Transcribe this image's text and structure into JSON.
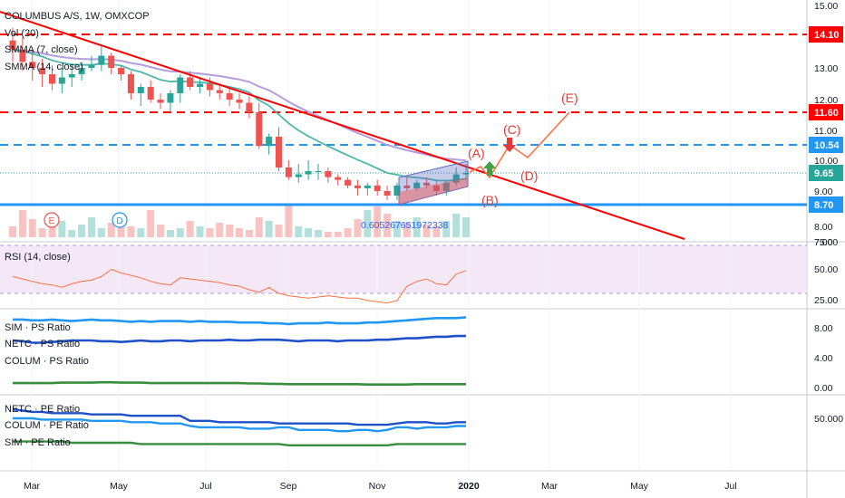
{
  "header": {
    "symbol": "COLUMBUS A/S, 1W, OMXCOP",
    "indicators": [
      "Vol (20)",
      "SMMA (7, close)",
      "SMMA (14, close)"
    ]
  },
  "colors": {
    "up": "#26a69a",
    "down": "#ef5350",
    "smma7": "#4db6ac",
    "smma14": "#b39ddb",
    "trend": "#ff0000",
    "level_red": "#ff0000",
    "level_blue": "#2196f3",
    "support": "#2196f3",
    "rsi": "#ff7043",
    "rsi_band": "#f3e5f5",
    "path": "#ff7043",
    "channel": "#5c6bc0"
  },
  "chart_data": [
    {
      "type": "candlestick",
      "title": "COLUMBUS A/S, 1W, OMXCOP",
      "x": [
        "2019-02-15",
        "2019-02-22",
        "2019-03-01",
        "2019-03-08",
        "2019-03-15",
        "2019-03-22",
        "2019-03-29",
        "2019-04-05",
        "2019-04-12",
        "2019-04-19",
        "2019-04-26",
        "2019-05-03",
        "2019-05-10",
        "2019-05-17",
        "2019-05-24",
        "2019-05-31",
        "2019-06-07",
        "2019-06-14",
        "2019-06-21",
        "2019-06-28",
        "2019-07-05",
        "2019-07-12",
        "2019-07-19",
        "2019-07-26",
        "2019-08-02",
        "2019-08-09",
        "2019-08-16",
        "2019-08-23",
        "2019-08-30",
        "2019-09-06",
        "2019-09-13",
        "2019-09-20",
        "2019-09-27",
        "2019-10-04",
        "2019-10-11",
        "2019-10-18",
        "2019-10-25",
        "2019-11-01",
        "2019-11-08",
        "2019-11-15",
        "2019-11-22",
        "2019-11-29",
        "2019-12-06",
        "2019-12-13",
        "2019-12-20",
        "2019-12-27",
        "2020-01-03"
      ],
      "open": [
        13.9,
        13.6,
        13.2,
        13.0,
        12.8,
        12.5,
        12.7,
        12.8,
        13.0,
        13.1,
        13.4,
        13.0,
        12.8,
        12.2,
        12.4,
        12.0,
        11.9,
        12.2,
        12.7,
        12.4,
        12.5,
        12.3,
        12.2,
        12.0,
        11.9,
        11.6,
        10.5,
        10.8,
        9.8,
        9.5,
        9.6,
        9.7,
        9.7,
        9.5,
        9.4,
        9.2,
        9.1,
        9.2,
        9.0,
        8.9,
        9.2,
        9.1,
        9.3,
        9.2,
        9.0,
        9.3,
        9.6
      ],
      "high": [
        14.3,
        14.0,
        13.6,
        13.3,
        13.1,
        13.0,
        13.1,
        13.2,
        13.4,
        13.7,
        13.5,
        13.1,
        12.9,
        12.5,
        12.6,
        12.2,
        12.3,
        12.8,
        12.9,
        12.7,
        12.7,
        12.5,
        12.4,
        12.2,
        12.1,
        11.9,
        10.9,
        11.1,
        10.0,
        9.9,
        10.0,
        9.9,
        9.8,
        9.6,
        9.5,
        9.4,
        9.3,
        9.4,
        9.2,
        9.3,
        9.5,
        9.4,
        9.5,
        9.4,
        9.4,
        9.8,
        9.9
      ],
      "low": [
        13.2,
        12.9,
        12.6,
        12.4,
        12.3,
        12.2,
        12.4,
        12.6,
        12.9,
        12.9,
        12.8,
        12.6,
        12.0,
        11.8,
        11.9,
        11.7,
        11.6,
        11.9,
        12.3,
        12.2,
        12.1,
        12.0,
        11.8,
        11.7,
        11.4,
        10.4,
        10.2,
        9.7,
        9.4,
        9.3,
        9.4,
        9.4,
        9.3,
        9.2,
        9.1,
        8.9,
        8.9,
        8.9,
        8.8,
        8.8,
        9.0,
        9.0,
        9.1,
        8.9,
        8.9,
        9.2,
        9.4
      ],
      "close": [
        13.6,
        13.2,
        13.0,
        12.8,
        12.5,
        12.7,
        12.8,
        13.0,
        13.1,
        13.4,
        13.0,
        12.8,
        12.2,
        12.4,
        12.0,
        11.9,
        12.2,
        12.7,
        12.4,
        12.5,
        12.3,
        12.2,
        12.0,
        11.9,
        11.6,
        10.5,
        10.8,
        9.8,
        9.5,
        9.6,
        9.7,
        9.7,
        9.5,
        9.4,
        9.2,
        9.1,
        9.2,
        9.0,
        8.9,
        9.2,
        9.1,
        9.3,
        9.2,
        9.0,
        9.3,
        9.6,
        9.65
      ],
      "volume_markers": [
        "E",
        "D"
      ],
      "volume_annotation": "0.605267651972338",
      "levels": [
        {
          "value": 14.1,
          "label": "14.10",
          "color": "red",
          "style": "dashed"
        },
        {
          "value": 11.6,
          "label": "11.60",
          "color": "red",
          "style": "dashed"
        },
        {
          "value": 10.54,
          "label": "10.54",
          "color": "blue",
          "style": "dashed"
        },
        {
          "value": 9.65,
          "label": "9.65",
          "color": "teal",
          "style": "dotted"
        },
        {
          "value": 8.7,
          "label": "8.70",
          "color": "blue",
          "style": "solid"
        }
      ],
      "wave_labels": [
        "(A)",
        "(B)",
        "(C)",
        "(D)",
        "(E)"
      ],
      "y_ticks": [
        "15.00",
        "13.00",
        "12.00",
        "11.00",
        "10.00",
        "9.00",
        "8.00",
        "7.00"
      ],
      "ylim": [
        7.0,
        15.0
      ]
    },
    {
      "type": "line",
      "title": "RSI (14, close)",
      "y_ticks": [
        "75.00",
        "50.00",
        "25.00"
      ],
      "ylim": [
        15,
        80
      ],
      "band": [
        30,
        70
      ],
      "series": [
        {
          "values": [
            44,
            42,
            40,
            38,
            37,
            35,
            38,
            40,
            41,
            44,
            50,
            47,
            45,
            43,
            40,
            38,
            37,
            43,
            42,
            41,
            40,
            39,
            37,
            36,
            33,
            31,
            35,
            30,
            28,
            27,
            26,
            27,
            28,
            27,
            26,
            26,
            24,
            23,
            22,
            24,
            36,
            40,
            42,
            38,
            37,
            46,
            49
          ]
        }
      ]
    },
    {
      "type": "line",
      "title": "PS Ratio",
      "y_ticks": [
        "8.00",
        "4.00",
        "0.00"
      ],
      "ylim": [
        -0.5,
        10
      ],
      "series": [
        {
          "name": "SIM · PS Ratio",
          "values": [
            9.1,
            9.1,
            9.0,
            9.0,
            9.1,
            9.0,
            8.9,
            9.0,
            9.1,
            9.0,
            9.0,
            8.9,
            8.8,
            8.9,
            8.8,
            8.9,
            8.9,
            8.9,
            8.8,
            8.9,
            8.8,
            8.8,
            8.8,
            8.7,
            8.7,
            8.7,
            8.6,
            8.6,
            8.5,
            8.6,
            8.6,
            8.6,
            8.7,
            8.6,
            8.6,
            8.6,
            8.7,
            8.7,
            8.8,
            8.9,
            9.0,
            9.1,
            9.2,
            9.3,
            9.3,
            9.3,
            9.4
          ]
        },
        {
          "name": "NETC · PS Ratio",
          "values": [
            6.3,
            6.2,
            6.0,
            6.0,
            6.1,
            6.2,
            6.3,
            6.3,
            6.3,
            6.2,
            6.2,
            6.1,
            6.2,
            6.3,
            6.2,
            6.2,
            6.3,
            6.3,
            6.2,
            6.3,
            6.3,
            6.3,
            6.4,
            6.3,
            6.3,
            6.4,
            6.4,
            6.4,
            6.3,
            6.2,
            6.3,
            6.3,
            6.3,
            6.2,
            6.3,
            6.3,
            6.3,
            6.4,
            6.4,
            6.5,
            6.6,
            6.6,
            6.7,
            6.8,
            6.8,
            6.9,
            6.9
          ]
        },
        {
          "name": "COLUM · PS Ratio",
          "values": [
            0.6,
            0.6,
            0.6,
            0.6,
            0.6,
            0.65,
            0.65,
            0.65,
            0.65,
            0.7,
            0.7,
            0.65,
            0.65,
            0.65,
            0.6,
            0.6,
            0.6,
            0.6,
            0.6,
            0.6,
            0.6,
            0.6,
            0.6,
            0.6,
            0.55,
            0.55,
            0.5,
            0.5,
            0.45,
            0.45,
            0.45,
            0.45,
            0.45,
            0.45,
            0.45,
            0.45,
            0.4,
            0.4,
            0.4,
            0.4,
            0.4,
            0.45,
            0.45,
            0.45,
            0.45,
            0.45,
            0.45
          ]
        }
      ]
    },
    {
      "type": "line",
      "title": "PE Ratio",
      "y_ticks": [
        "50.000"
      ],
      "series": [
        {
          "name": "NETC · PE Ratio",
          "values": [
            57,
            56,
            55,
            55,
            54,
            54,
            54,
            54,
            53,
            53,
            53,
            53,
            52,
            52,
            52,
            52,
            52,
            52,
            48,
            48,
            48,
            47,
            47,
            47,
            47,
            47,
            47,
            46,
            46,
            46,
            46,
            46,
            46,
            46,
            46,
            45,
            45,
            45,
            45,
            46,
            47,
            47,
            47,
            46,
            46,
            47,
            47
          ]
        },
        {
          "name": "COLUM · PE Ratio",
          "values": [
            50,
            50,
            50,
            49,
            49,
            49,
            49,
            49,
            48,
            48,
            48,
            48,
            47,
            47,
            47,
            46,
            46,
            46,
            44,
            43,
            43,
            43,
            43,
            43,
            42,
            42,
            42,
            43,
            43,
            41,
            41,
            41,
            41,
            40,
            40,
            41,
            41,
            40,
            41,
            43,
            43,
            42,
            43,
            43,
            43,
            44,
            44
          ]
        },
        {
          "name": "SIM · PE Ratio",
          "values": [
            32,
            32,
            32,
            32,
            32,
            32,
            31,
            31,
            31,
            31,
            31,
            31,
            31,
            30,
            30,
            30,
            30,
            30,
            30,
            30,
            30,
            30,
            30,
            30,
            30,
            30,
            30,
            30,
            29,
            29,
            29,
            29,
            29,
            29,
            29,
            29,
            29,
            29,
            29,
            30,
            30,
            30,
            30,
            30,
            30,
            30,
            30
          ]
        }
      ]
    }
  ],
  "time_axis": [
    "Mar",
    "May",
    "Jul",
    "Sep",
    "Nov",
    "2020",
    "Mar",
    "May",
    "Jul"
  ]
}
